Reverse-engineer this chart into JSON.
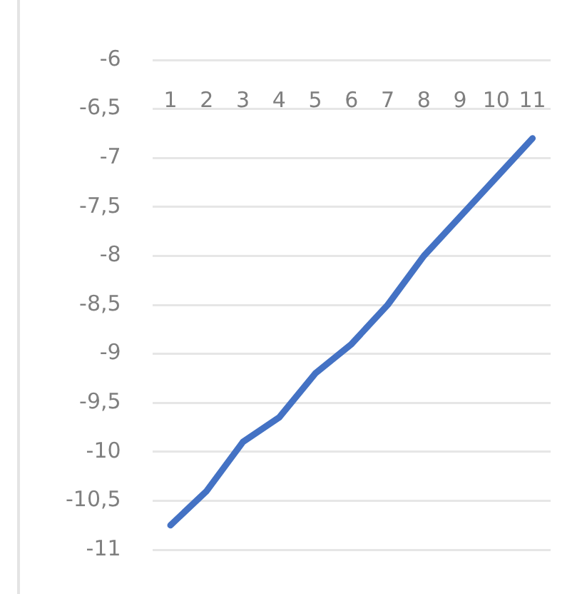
{
  "chart_data": {
    "type": "line",
    "categories": [
      "1",
      "2",
      "3",
      "4",
      "5",
      "6",
      "7",
      "8",
      "9",
      "10",
      "11"
    ],
    "series": [
      {
        "color": "#4472c4",
        "values": [
          -10.75,
          -10.4,
          -9.9,
          -9.65,
          -9.2,
          -8.9,
          -8.5,
          -8.0,
          -7.6,
          -7.2,
          -6.8
        ]
      }
    ],
    "ylim": [
      -11,
      -6
    ],
    "yticks": [
      -11,
      {
        "value": -10.5,
        "label": "-10,5"
      },
      -10,
      {
        "value": -9.5,
        "label": "-9,5"
      },
      -9,
      {
        "value": -8.5,
        "label": "-8,5"
      },
      -8,
      {
        "value": -7.5,
        "label": "-7,5"
      },
      -7,
      {
        "value": -6.5,
        "label": "-6,5"
      },
      -6
    ],
    "grid": "y",
    "marker": "none",
    "line_style": "solid",
    "legend": false
  }
}
